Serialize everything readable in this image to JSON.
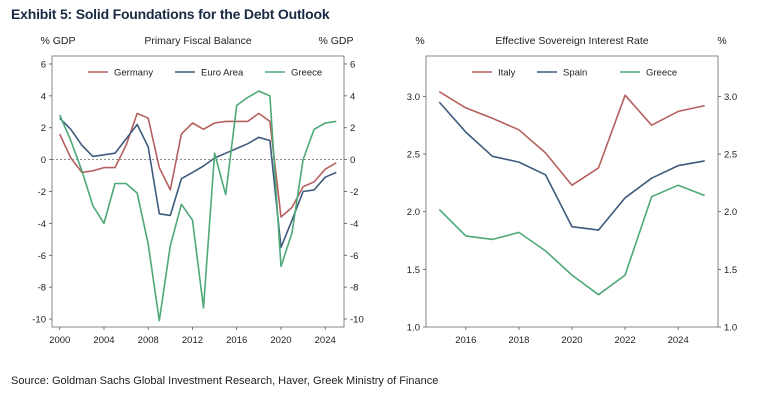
{
  "title": "Exhibit 5: Solid Foundations for the Debt Outlook",
  "source": "Source: Goldman Sachs Global Investment Research, Haver, Greek Ministry of Finance",
  "colors": {
    "red": "#b5605e",
    "blue": "#3e5a7c",
    "green": "#4fa878"
  },
  "chart_data": [
    {
      "type": "line",
      "title": "Primary Fiscal Balance",
      "ylabel_left": "% GDP",
      "ylabel_right": "% GDP",
      "xlim": [
        1999.3,
        2025.7
      ],
      "ylim": [
        -10.5,
        6.5
      ],
      "xticks": [
        2000,
        2004,
        2008,
        2012,
        2016,
        2020,
        2024
      ],
      "yticks": [
        -10,
        -8,
        -6,
        -4,
        -2,
        0,
        2,
        4,
        6
      ],
      "zero_line": true,
      "legend_position": "top",
      "series": [
        {
          "name": "Germany",
          "color": "#b5605e",
          "x": [
            2000,
            2001,
            2002,
            2003,
            2004,
            2005,
            2006,
            2007,
            2008,
            2009,
            2010,
            2011,
            2012,
            2013,
            2014,
            2015,
            2016,
            2017,
            2018,
            2019,
            2020,
            2021,
            2022,
            2023,
            2024,
            2025
          ],
          "values": [
            1.6,
            0.1,
            -0.8,
            -0.7,
            -0.5,
            -0.5,
            0.9,
            2.9,
            2.6,
            -0.5,
            -1.9,
            1.6,
            2.3,
            1.9,
            2.3,
            2.4,
            2.4,
            2.4,
            2.9,
            2.4,
            -3.6,
            -3.0,
            -1.7,
            -1.4,
            -0.6,
            -0.2
          ]
        },
        {
          "name": "Euro Area",
          "color": "#3e5a7c",
          "x": [
            2000,
            2001,
            2002,
            2003,
            2004,
            2005,
            2006,
            2007,
            2008,
            2009,
            2010,
            2011,
            2012,
            2013,
            2014,
            2015,
            2016,
            2017,
            2018,
            2019,
            2020,
            2021,
            2022,
            2023,
            2024,
            2025
          ],
          "values": [
            2.6,
            1.9,
            0.9,
            0.2,
            0.3,
            0.4,
            1.3,
            2.2,
            0.8,
            -3.4,
            -3.5,
            -1.2,
            -0.8,
            -0.4,
            0.1,
            0.4,
            0.7,
            1.0,
            1.4,
            1.2,
            -5.5,
            -3.8,
            -2.0,
            -1.9,
            -1.1,
            -0.8
          ]
        },
        {
          "name": "Greece",
          "color": "#4fa878",
          "x": [
            2000,
            2001,
            2002,
            2003,
            2004,
            2005,
            2006,
            2007,
            2008,
            2009,
            2010,
            2011,
            2012,
            2013,
            2014,
            2015,
            2016,
            2017,
            2018,
            2019,
            2020,
            2021,
            2022,
            2023,
            2024,
            2025
          ],
          "values": [
            2.8,
            1.2,
            -0.7,
            -2.9,
            -4.0,
            -1.5,
            -1.5,
            -2.1,
            -5.3,
            -10.1,
            -5.4,
            -2.8,
            -3.8,
            -9.3,
            0.4,
            -2.2,
            3.4,
            3.9,
            4.3,
            4.0,
            -6.7,
            -4.6,
            0.0,
            1.9,
            2.3,
            2.4
          ]
        }
      ]
    },
    {
      "type": "line",
      "title": "Effective Sovereign Interest Rate",
      "ylabel_left": "%",
      "ylabel_right": "%",
      "xlim": [
        2014.5,
        2025.5
      ],
      "ylim": [
        1.0,
        3.35
      ],
      "xticks": [
        2016,
        2018,
        2020,
        2022,
        2024
      ],
      "yticks": [
        1.0,
        1.5,
        2.0,
        2.5,
        3.0
      ],
      "legend_position": "top",
      "series": [
        {
          "name": "Italy",
          "color": "#b5605e",
          "x": [
            2015,
            2016,
            2017,
            2018,
            2019,
            2020,
            2021,
            2022,
            2023,
            2024,
            2025
          ],
          "values": [
            3.04,
            2.9,
            2.81,
            2.71,
            2.51,
            2.23,
            2.38,
            3.01,
            2.75,
            2.87,
            2.92
          ]
        },
        {
          "name": "Spain",
          "color": "#3e5a7c",
          "x": [
            2015,
            2016,
            2017,
            2018,
            2019,
            2020,
            2021,
            2022,
            2023,
            2024,
            2025
          ],
          "values": [
            2.95,
            2.69,
            2.48,
            2.43,
            2.32,
            1.87,
            1.84,
            2.12,
            2.29,
            2.4,
            2.44
          ]
        },
        {
          "name": "Greece",
          "color": "#4fa878",
          "x": [
            2015,
            2016,
            2017,
            2018,
            2019,
            2020,
            2021,
            2022,
            2023,
            2024,
            2025
          ],
          "values": [
            2.02,
            1.79,
            1.76,
            1.82,
            1.66,
            1.45,
            1.28,
            1.45,
            2.13,
            2.23,
            2.14
          ]
        }
      ]
    }
  ]
}
